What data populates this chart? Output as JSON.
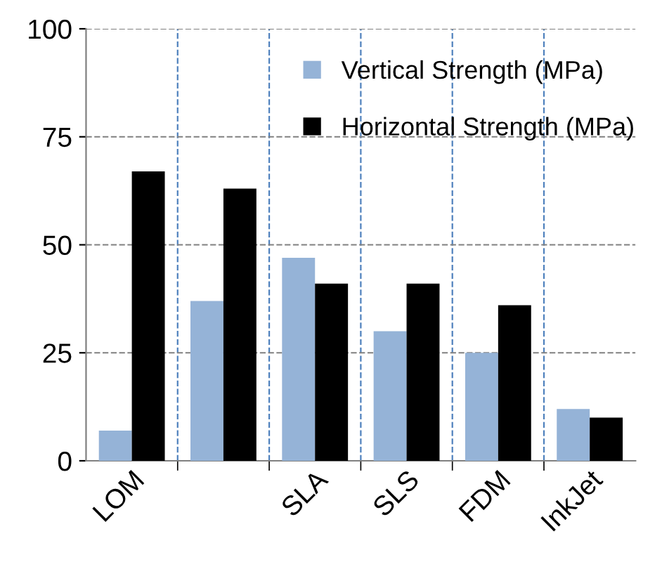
{
  "chart_data": {
    "type": "bar",
    "categories": [
      "LOM",
      null,
      "SLA",
      "SLS",
      "FDM",
      "InkJet"
    ],
    "series": [
      {
        "name": "Vertical Strength (MPa)",
        "color": "#95b3d7",
        "values": [
          7,
          37,
          47,
          30,
          25,
          12
        ]
      },
      {
        "name": "Horizontal Strength (MPa)",
        "color": "#000000",
        "values": [
          67,
          63,
          41,
          41,
          36,
          10
        ]
      }
    ],
    "ylim": [
      0,
      100
    ],
    "yticks": [
      0,
      25,
      50,
      75,
      100
    ],
    "grid": true,
    "legend": "top right"
  }
}
